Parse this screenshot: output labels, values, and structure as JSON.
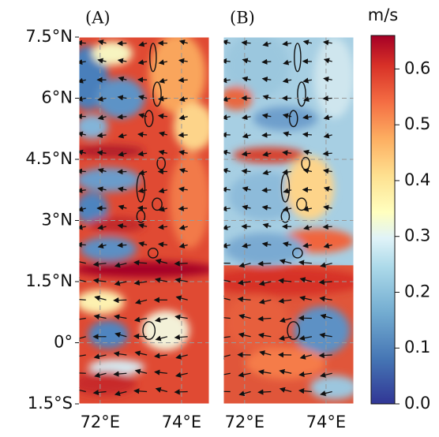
{
  "panels": [
    {
      "label": "(A)"
    },
    {
      "label": "(B)"
    }
  ],
  "axes": {
    "xlim": [
      71.48,
      74.68
    ],
    "ylim": [
      -1.5,
      7.5
    ],
    "xticks": [
      {
        "value": 72,
        "label": "72°E"
      },
      {
        "value": 74,
        "label": "74°E"
      }
    ],
    "yticks": [
      {
        "value": 7.5,
        "label": "7.5°N"
      },
      {
        "value": 6,
        "label": "6°N"
      },
      {
        "value": 4.5,
        "label": "4.5°N"
      },
      {
        "value": 3,
        "label": "3°N"
      },
      {
        "value": 1.5,
        "label": "1.5°N"
      },
      {
        "value": 0,
        "label": "0°"
      },
      {
        "value": -1.5,
        "label": "1.5°S"
      }
    ]
  },
  "colorbar": {
    "title": "m/s",
    "lim": [
      0,
      0.66
    ],
    "ticks": [
      {
        "value": 0,
        "label": "0.0"
      },
      0.1,
      0.2,
      0.3,
      0.4,
      0.5,
      0.6
    ]
  }
}
